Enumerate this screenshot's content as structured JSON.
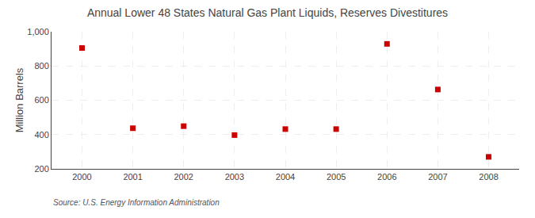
{
  "chart_data": {
    "type": "scatter",
    "title": "Annual Lower 48 States Natural Gas Plant Liquids, Reserves Divestitures",
    "ylabel": "Million Barrels",
    "annotations": [
      "Source: U.S. Energy Information Administration"
    ],
    "x": [
      2000,
      2001,
      2002,
      2003,
      2004,
      2005,
      2006,
      2007,
      2008
    ],
    "values": [
      905,
      437,
      449,
      397,
      432,
      432,
      929,
      663,
      270
    ],
    "color": "#cc0000",
    "marker": "square",
    "xlim": [
      1999.4,
      2008.6
    ],
    "xticks": [
      2000,
      2001,
      2002,
      2003,
      2004,
      2005,
      2006,
      2007,
      2008
    ],
    "ylim": [
      200,
      1000
    ],
    "yticks": [
      200,
      400,
      600,
      800,
      {
        "value": 1000,
        "label": "1,000"
      }
    ],
    "grid": true
  }
}
